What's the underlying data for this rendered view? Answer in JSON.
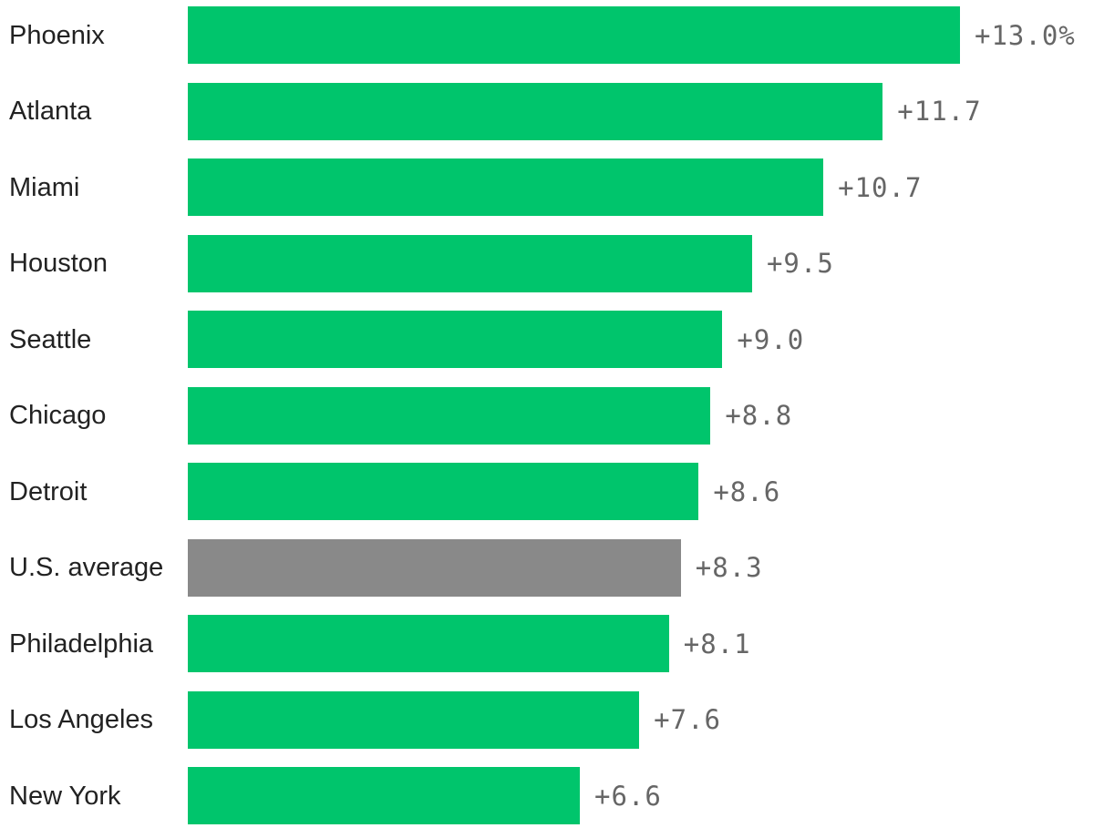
{
  "chart_data": {
    "type": "bar",
    "orientation": "horizontal",
    "categories": [
      "Phoenix",
      "Atlanta",
      "Miami",
      "Houston",
      "Seattle",
      "Chicago",
      "Detroit",
      "U.S. average",
      "Philadelphia",
      "Los Angeles",
      "New York"
    ],
    "values": [
      13.0,
      11.7,
      10.7,
      9.5,
      9.0,
      8.8,
      8.6,
      8.3,
      8.1,
      7.6,
      6.6
    ],
    "value_labels": [
      "+13.0%",
      "+11.7",
      "+10.7",
      "+9.5",
      "+9.0",
      "+8.8",
      "+8.6",
      "+8.3",
      "+8.1",
      "+7.6",
      "+6.6"
    ],
    "highlight_category": "U.S. average",
    "xlim": [
      0,
      13.0
    ],
    "grid": false,
    "title": "",
    "xlabel": "",
    "ylabel": ""
  },
  "colors": {
    "bar": "#00c56c",
    "highlight_bar": "#898989",
    "category_text": "#222222",
    "value_text": "#666666"
  }
}
